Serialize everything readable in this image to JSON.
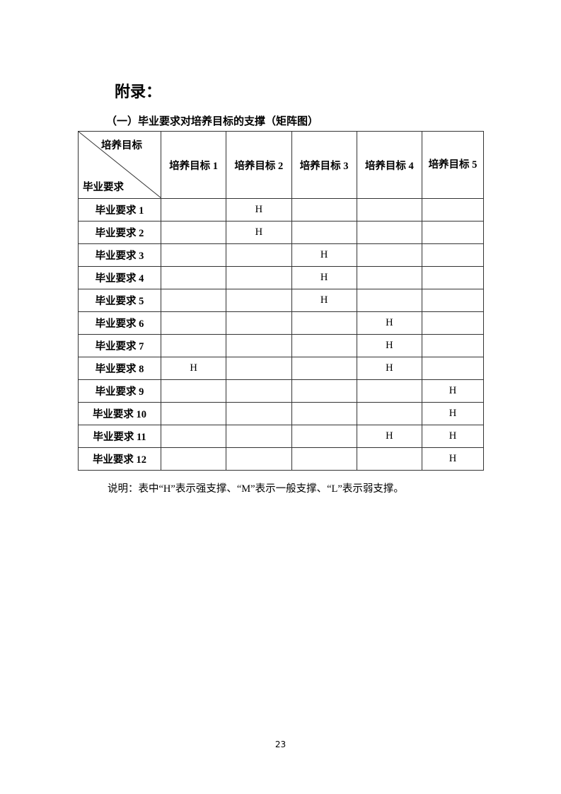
{
  "title": "附录：",
  "subtitle": "（一）毕业要求对培养目标的支撑（矩阵图）",
  "table": {
    "corner_top": "培养目标",
    "corner_bottom": "毕业要求",
    "columns": [
      "培养目标 1",
      "培养目标 2",
      "培养目标 3",
      "培养目标 4",
      "培养目标 5"
    ],
    "rows": [
      {
        "label": "毕业要求 1",
        "cells": [
          "",
          "H",
          "",
          "",
          ""
        ]
      },
      {
        "label": "毕业要求 2",
        "cells": [
          "",
          "H",
          "",
          "",
          ""
        ]
      },
      {
        "label": "毕业要求 3",
        "cells": [
          "",
          "",
          "H",
          "",
          ""
        ]
      },
      {
        "label": "毕业要求 4",
        "cells": [
          "",
          "",
          "H",
          "",
          ""
        ]
      },
      {
        "label": "毕业要求 5",
        "cells": [
          "",
          "",
          "H",
          "",
          ""
        ]
      },
      {
        "label": "毕业要求 6",
        "cells": [
          "",
          "",
          "",
          "H",
          ""
        ]
      },
      {
        "label": "毕业要求 7",
        "cells": [
          "",
          "",
          "",
          "H",
          ""
        ]
      },
      {
        "label": "毕业要求 8",
        "cells": [
          "H",
          "",
          "",
          "H",
          ""
        ]
      },
      {
        "label": "毕业要求 9",
        "cells": [
          "",
          "",
          "",
          "",
          "H"
        ]
      },
      {
        "label": "毕业要求 10",
        "cells": [
          "",
          "",
          "",
          "",
          "H"
        ]
      },
      {
        "label": "毕业要求 11",
        "cells": [
          "",
          "",
          "",
          "H",
          "H"
        ]
      },
      {
        "label": "毕业要求 12",
        "cells": [
          "",
          "",
          "",
          "",
          "H"
        ]
      }
    ]
  },
  "note": "说明：表中“H”表示强支撑、“M”表示一般支撑、“L”表示弱支撑。",
  "page_number": "23"
}
